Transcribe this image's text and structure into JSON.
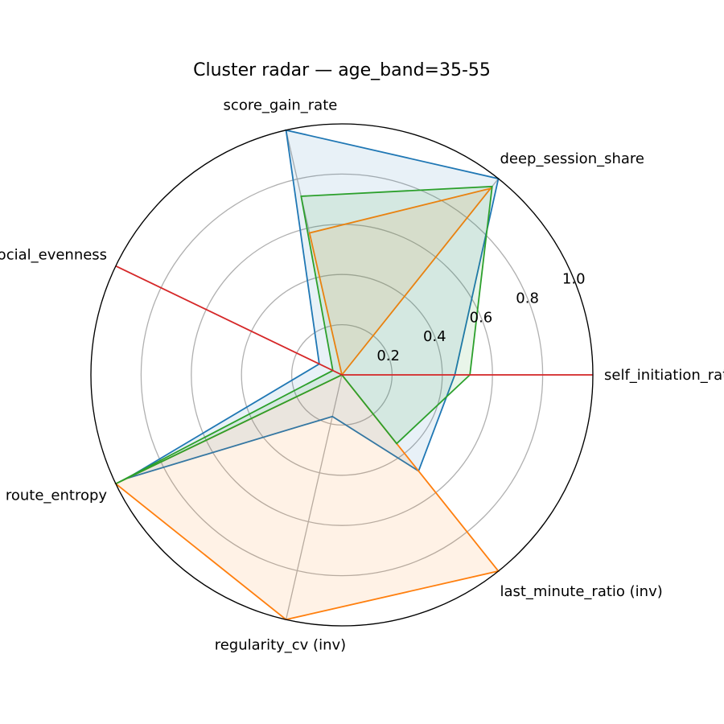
{
  "chart_data": {
    "type": "radar",
    "title": "Cluster radar — age_band=35-55",
    "axes": [
      "self_initiation_rate",
      "deep_session_share",
      "score_gain_rate",
      "social_evenness",
      "route_entropy",
      "regularity_cv (inv)",
      "last_minute_ratio (inv)"
    ],
    "rlim": [
      0,
      1.0
    ],
    "rticks": [
      0.2,
      0.4,
      0.6,
      0.8,
      1.0
    ],
    "rtick_labels": [
      "0.2",
      "0.4",
      "0.6",
      "0.8",
      "1.0"
    ],
    "grid": true,
    "series": [
      {
        "color": "#1f77b4",
        "fill_alpha": 0.1,
        "values": [
          0.45,
          1.0,
          1.0,
          0.1,
          0.95,
          0.17,
          0.49
        ]
      },
      {
        "color": "#ff7f0e",
        "fill_alpha": 0.1,
        "values": [
          0.0,
          0.95,
          0.58,
          0.0,
          1.0,
          1.0,
          1.0
        ]
      },
      {
        "color": "#2ca02c",
        "fill_alpha": 0.1,
        "values": [
          0.51,
          0.96,
          0.73,
          0.04,
          1.0,
          0.0,
          0.35
        ]
      },
      {
        "color": "#d62728",
        "fill_alpha": 0.0,
        "values": [
          1.0,
          0.0,
          0.0,
          1.0,
          0.0,
          0.0,
          0.0
        ]
      }
    ]
  }
}
